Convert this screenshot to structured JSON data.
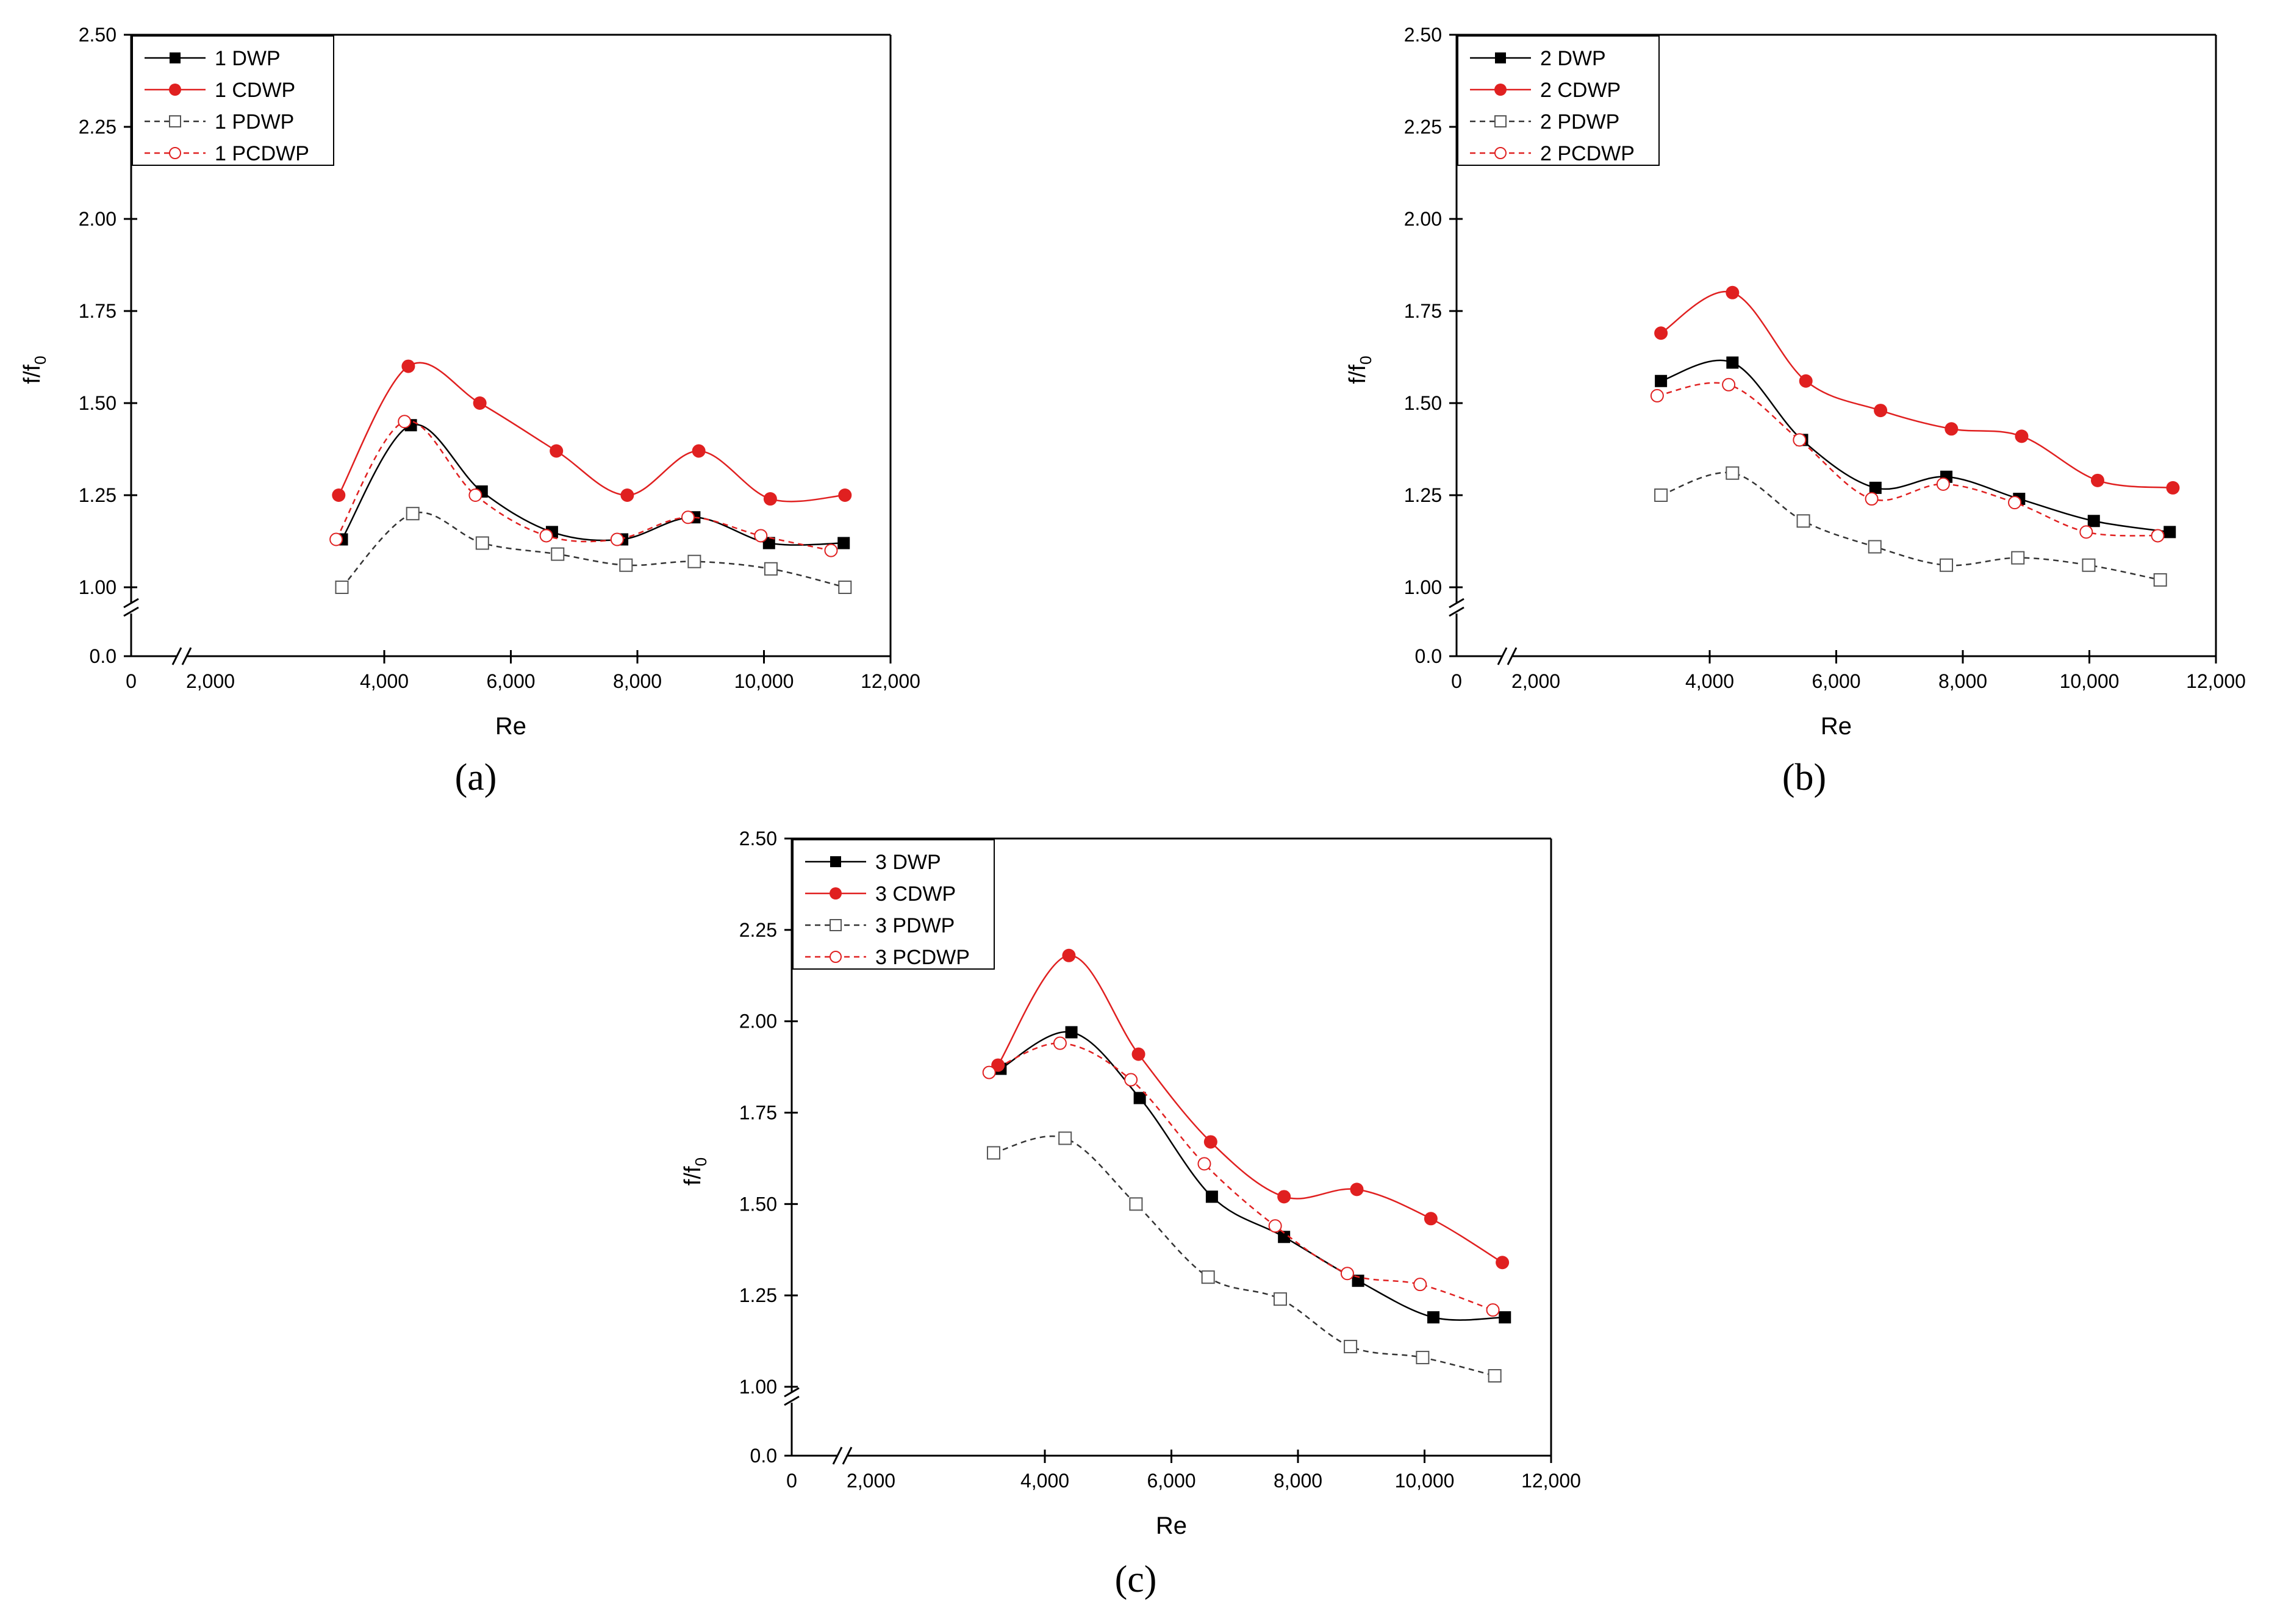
{
  "chart_data": [
    {
      "type": "line",
      "panel_label": "(a)",
      "xlabel": "Re",
      "ylabel": "f/f",
      "ylabel_sub": "0",
      "xlim": [
        0,
        12000
      ],
      "ylim": [
        1.0,
        2.5
      ],
      "axis_break_y_value": "0.0",
      "x_ticks": [
        "0",
        "2,000",
        "4,000",
        "6,000",
        "8,000",
        "10,000",
        "12,000"
      ],
      "x_tick_values": [
        0,
        2000,
        4000,
        6000,
        8000,
        10000,
        12000
      ],
      "y_ticks": [
        "1.00",
        "1.25",
        "1.50",
        "1.75",
        "2.00",
        "2.25",
        "2.50"
      ],
      "y_tick_values": [
        1.0,
        1.25,
        1.5,
        1.75,
        2.0,
        2.25,
        2.5
      ],
      "legend_position": "top-left",
      "series": [
        {
          "name": "1 DWP",
          "color": "#000000",
          "marker": "filled-square",
          "line": "solid",
          "x": [
            3330,
            4420,
            5540,
            6650,
            7760,
            8900,
            10080,
            11260
          ],
          "y": [
            1.13,
            1.44,
            1.26,
            1.15,
            1.13,
            1.19,
            1.12,
            1.12
          ]
        },
        {
          "name": "1 CDWP",
          "color": "#e02020",
          "marker": "filled-circle",
          "line": "solid",
          "x": [
            3280,
            4380,
            5510,
            6720,
            7840,
            8970,
            10100,
            11280
          ],
          "y": [
            1.25,
            1.6,
            1.5,
            1.37,
            1.25,
            1.37,
            1.24,
            1.25
          ]
        },
        {
          "name": "1 PDWP",
          "color": "#333333",
          "marker": "open-square",
          "line": "dashed",
          "x": [
            3330,
            4450,
            5550,
            6740,
            7820,
            8900,
            10110,
            11280
          ],
          "y": [
            1.0,
            1.2,
            1.12,
            1.09,
            1.06,
            1.07,
            1.05,
            1.0
          ]
        },
        {
          "name": "1 PCDWP",
          "color": "#e02020",
          "marker": "open-circle",
          "line": "dashed",
          "x": [
            3240,
            4320,
            5440,
            6560,
            7680,
            8800,
            9950,
            11060
          ],
          "y": [
            1.13,
            1.45,
            1.25,
            1.14,
            1.13,
            1.19,
            1.14,
            1.1
          ]
        }
      ]
    },
    {
      "type": "line",
      "panel_label": "(b)",
      "xlabel": "Re",
      "ylabel": "f/f",
      "ylabel_sub": "0",
      "xlim": [
        0,
        12000
      ],
      "ylim": [
        1.0,
        2.5
      ],
      "axis_break_y_value": "0.0",
      "x_ticks": [
        "0",
        "2,000",
        "4,000",
        "6,000",
        "8,000",
        "10,000",
        "12,000"
      ],
      "x_tick_values": [
        0,
        2000,
        4000,
        6000,
        8000,
        10000,
        12000
      ],
      "y_ticks": [
        "1.00",
        "1.25",
        "1.50",
        "1.75",
        "2.00",
        "2.25",
        "2.50"
      ],
      "y_tick_values": [
        1.0,
        1.25,
        1.5,
        1.75,
        2.0,
        2.25,
        2.5
      ],
      "legend_position": "top-left",
      "series": [
        {
          "name": "2 DWP",
          "color": "#000000",
          "marker": "filled-square",
          "line": "solid",
          "x": [
            3230,
            4360,
            5460,
            6620,
            7740,
            8890,
            10070,
            11270
          ],
          "y": [
            1.56,
            1.61,
            1.4,
            1.27,
            1.3,
            1.24,
            1.18,
            1.15
          ]
        },
        {
          "name": "2 CDWP",
          "color": "#e02020",
          "marker": "filled-circle",
          "line": "solid",
          "x": [
            3230,
            4360,
            5520,
            6700,
            7820,
            8930,
            10130,
            11320
          ],
          "y": [
            1.69,
            1.8,
            1.56,
            1.48,
            1.43,
            1.41,
            1.29,
            1.27
          ]
        },
        {
          "name": "2 PDWP",
          "color": "#333333",
          "marker": "open-square",
          "line": "dashed",
          "x": [
            3230,
            4360,
            5480,
            6610,
            7740,
            8870,
            9990,
            11120
          ],
          "y": [
            1.25,
            1.31,
            1.18,
            1.11,
            1.06,
            1.08,
            1.06,
            1.02
          ]
        },
        {
          "name": "2 PCDWP",
          "color": "#e02020",
          "marker": "open-circle",
          "line": "dashed",
          "x": [
            3170,
            4300,
            5420,
            6560,
            7690,
            8820,
            9950,
            11080
          ],
          "y": [
            1.52,
            1.55,
            1.4,
            1.24,
            1.28,
            1.23,
            1.15,
            1.14
          ]
        }
      ]
    },
    {
      "type": "line",
      "panel_label": "(c)",
      "xlabel": "Re",
      "ylabel": "f/f",
      "ylabel_sub": "0",
      "xlim": [
        0,
        12000
      ],
      "ylim": [
        1.0,
        2.5
      ],
      "axis_break_y_value": "0.0",
      "x_ticks": [
        "0",
        "2,000",
        "4,000",
        "6,000",
        "8,000",
        "10,000",
        "12,000"
      ],
      "x_tick_values": [
        0,
        2000,
        4000,
        6000,
        8000,
        10000,
        12000
      ],
      "y_ticks": [
        "1.00",
        "1.25",
        "1.50",
        "1.75",
        "2.00",
        "2.25",
        "2.50"
      ],
      "y_tick_values": [
        1.0,
        1.25,
        1.5,
        1.75,
        2.0,
        2.25,
        2.5
      ],
      "legend_position": "top-left",
      "series": [
        {
          "name": "3 DWP",
          "color": "#000000",
          "marker": "filled-square",
          "line": "solid",
          "x": [
            3300,
            4420,
            5500,
            6640,
            7780,
            8950,
            10140,
            11270
          ],
          "y": [
            1.87,
            1.97,
            1.79,
            1.52,
            1.41,
            1.29,
            1.19,
            1.19
          ]
        },
        {
          "name": "3 CDWP",
          "color": "#e02020",
          "marker": "filled-circle",
          "line": "solid",
          "x": [
            3260,
            4380,
            5480,
            6620,
            7780,
            8930,
            10100,
            11230
          ],
          "y": [
            1.88,
            2.18,
            1.91,
            1.67,
            1.52,
            1.54,
            1.46,
            1.34
          ]
        },
        {
          "name": "3 PDWP",
          "color": "#333333",
          "marker": "open-square",
          "line": "dashed",
          "x": [
            3190,
            4320,
            5440,
            6580,
            7720,
            8830,
            9970,
            11110
          ],
          "y": [
            1.64,
            1.68,
            1.5,
            1.3,
            1.24,
            1.11,
            1.08,
            1.03
          ]
        },
        {
          "name": "3 PCDWP",
          "color": "#e02020",
          "marker": "open-circle",
          "line": "dashed",
          "x": [
            3120,
            4240,
            5360,
            6520,
            7640,
            8780,
            9930,
            11080
          ],
          "y": [
            1.86,
            1.94,
            1.84,
            1.61,
            1.44,
            1.31,
            1.28,
            1.21
          ]
        }
      ]
    }
  ]
}
